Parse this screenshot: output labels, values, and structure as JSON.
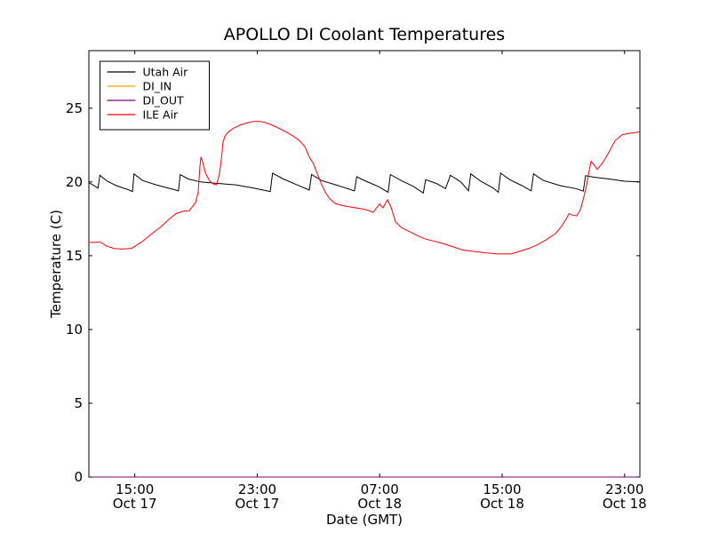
{
  "chart_data": {
    "type": "line",
    "title": "APOLLO DI Coolant Temperatures",
    "xlabel": "Date (GMT)",
    "ylabel": "Temperature (C)",
    "x_unit": "hours since Oct 17 12:00 GMT",
    "xlim": [
      0,
      36
    ],
    "ylim": [
      0,
      28.9
    ],
    "grid": false,
    "legend_position": "upper-left",
    "frame_color": "#000000",
    "background_color": "#ffffff",
    "yticks": [
      {
        "value": 0,
        "label": "0"
      },
      {
        "value": 5,
        "label": "5"
      },
      {
        "value": 10,
        "label": "10"
      },
      {
        "value": 15,
        "label": "15"
      },
      {
        "value": 20,
        "label": "20"
      },
      {
        "value": 25,
        "label": "25"
      }
    ],
    "xticks": [
      {
        "value": 3,
        "time": "15:00",
        "date": "Oct 17"
      },
      {
        "value": 11,
        "time": "23:00",
        "date": "Oct 17"
      },
      {
        "value": 19,
        "time": "07:00",
        "date": "Oct 18"
      },
      {
        "value": 27,
        "time": "15:00",
        "date": "Oct 18"
      },
      {
        "value": 35,
        "time": "23:00",
        "date": "Oct 18"
      }
    ],
    "series": [
      {
        "name": "Utah Air",
        "color": "#000000",
        "points": [
          [
            0,
            19.95
          ],
          [
            0.35,
            19.75
          ],
          [
            0.6,
            19.58
          ],
          [
            0.72,
            20.45
          ],
          [
            1.2,
            20.05
          ],
          [
            1.8,
            19.75
          ],
          [
            2.5,
            19.5
          ],
          [
            2.85,
            19.35
          ],
          [
            2.95,
            20.55
          ],
          [
            3.5,
            20.1
          ],
          [
            4.4,
            19.8
          ],
          [
            5.5,
            19.5
          ],
          [
            5.85,
            19.4
          ],
          [
            5.97,
            20.5
          ],
          [
            6.5,
            20.2
          ],
          [
            7.3,
            20.0
          ],
          [
            8.4,
            19.9
          ],
          [
            9.6,
            19.8
          ],
          [
            10.7,
            19.6
          ],
          [
            11.85,
            19.35
          ],
          [
            12.0,
            20.6
          ],
          [
            12.7,
            20.2
          ],
          [
            13.6,
            19.8
          ],
          [
            14.4,
            19.45
          ],
          [
            14.55,
            20.5
          ],
          [
            15.2,
            20.1
          ],
          [
            16.3,
            19.75
          ],
          [
            17.35,
            19.4
          ],
          [
            17.5,
            20.35
          ],
          [
            18.1,
            20.05
          ],
          [
            18.9,
            19.7
          ],
          [
            19.55,
            19.3
          ],
          [
            19.7,
            20.5
          ],
          [
            20.4,
            20.1
          ],
          [
            21.2,
            19.7
          ],
          [
            21.85,
            19.25
          ],
          [
            22.0,
            20.15
          ],
          [
            22.7,
            19.9
          ],
          [
            23.3,
            19.55
          ],
          [
            23.62,
            20.45
          ],
          [
            24.3,
            20.0
          ],
          [
            24.8,
            19.4
          ],
          [
            24.95,
            20.55
          ],
          [
            25.6,
            20.05
          ],
          [
            26.4,
            19.6
          ],
          [
            26.75,
            19.3
          ],
          [
            26.9,
            20.6
          ],
          [
            27.5,
            20.15
          ],
          [
            28.3,
            19.75
          ],
          [
            28.9,
            19.4
          ],
          [
            29.05,
            20.55
          ],
          [
            29.7,
            20.1
          ],
          [
            30.8,
            19.75
          ],
          [
            31.8,
            19.55
          ],
          [
            32.3,
            19.38
          ],
          [
            32.45,
            20.42
          ],
          [
            33.0,
            20.32
          ],
          [
            34.0,
            20.2
          ],
          [
            35.0,
            20.05
          ],
          [
            36.0,
            20.0
          ]
        ]
      },
      {
        "name": "DI_IN",
        "color": "#ffa500",
        "points": [
          [
            0,
            0
          ],
          [
            36,
            0
          ]
        ]
      },
      {
        "name": "DI_OUT",
        "color": "#800080",
        "points": [
          [
            0,
            0
          ],
          [
            36,
            0
          ]
        ]
      },
      {
        "name": "ILE Air",
        "color": "#ff0000",
        "points": [
          [
            0,
            15.9
          ],
          [
            0.46,
            15.9
          ],
          [
            0.7,
            15.95
          ],
          [
            1.16,
            15.65
          ],
          [
            1.63,
            15.5
          ],
          [
            2.15,
            15.45
          ],
          [
            2.79,
            15.5
          ],
          [
            3.48,
            15.95
          ],
          [
            4.12,
            16.5
          ],
          [
            4.7,
            16.95
          ],
          [
            5.28,
            17.5
          ],
          [
            5.69,
            17.85
          ],
          [
            6.1,
            18.0
          ],
          [
            6.56,
            18.05
          ],
          [
            6.97,
            18.6
          ],
          [
            7.14,
            19.3
          ],
          [
            7.25,
            21.0
          ],
          [
            7.32,
            21.7
          ],
          [
            7.45,
            21.3
          ],
          [
            7.62,
            20.6
          ],
          [
            7.9,
            20.05
          ],
          [
            8.15,
            19.85
          ],
          [
            8.35,
            19.8
          ],
          [
            8.54,
            20.6
          ],
          [
            8.65,
            21.5
          ],
          [
            8.77,
            22.7
          ],
          [
            8.89,
            23.1
          ],
          [
            9.12,
            23.4
          ],
          [
            9.47,
            23.65
          ],
          [
            9.87,
            23.85
          ],
          [
            10.34,
            24.0
          ],
          [
            10.74,
            24.1
          ],
          [
            11.21,
            24.1
          ],
          [
            11.61,
            24.0
          ],
          [
            12.19,
            23.75
          ],
          [
            12.78,
            23.45
          ],
          [
            13.36,
            23.1
          ],
          [
            13.76,
            22.8
          ],
          [
            14.11,
            22.4
          ],
          [
            14.4,
            21.7
          ],
          [
            14.69,
            21.2
          ],
          [
            14.98,
            20.4
          ],
          [
            15.21,
            19.8
          ],
          [
            15.45,
            19.3
          ],
          [
            15.74,
            18.85
          ],
          [
            16.09,
            18.55
          ],
          [
            16.55,
            18.4
          ],
          [
            17.13,
            18.3
          ],
          [
            17.71,
            18.2
          ],
          [
            18.18,
            18.1
          ],
          [
            18.58,
            17.95
          ],
          [
            18.99,
            18.5
          ],
          [
            19.22,
            18.25
          ],
          [
            19.51,
            18.8
          ],
          [
            19.74,
            18.3
          ],
          [
            20.03,
            17.3
          ],
          [
            20.44,
            16.9
          ],
          [
            21.02,
            16.6
          ],
          [
            21.49,
            16.35
          ],
          [
            21.95,
            16.15
          ],
          [
            22.53,
            16.0
          ],
          [
            23.23,
            15.8
          ],
          [
            23.81,
            15.6
          ],
          [
            24.39,
            15.4
          ],
          [
            25.09,
            15.3
          ],
          [
            25.84,
            15.2
          ],
          [
            26.71,
            15.12
          ],
          [
            27.58,
            15.12
          ],
          [
            28.16,
            15.3
          ],
          [
            28.75,
            15.5
          ],
          [
            29.33,
            15.75
          ],
          [
            29.91,
            16.1
          ],
          [
            30.49,
            16.5
          ],
          [
            30.89,
            17.0
          ],
          [
            31.19,
            17.5
          ],
          [
            31.36,
            17.85
          ],
          [
            31.59,
            17.75
          ],
          [
            31.88,
            17.7
          ],
          [
            32.11,
            18.1
          ],
          [
            32.34,
            19.0
          ],
          [
            32.52,
            19.8
          ],
          [
            32.69,
            20.8
          ],
          [
            32.81,
            21.4
          ],
          [
            32.98,
            21.2
          ],
          [
            33.22,
            20.85
          ],
          [
            33.57,
            21.3
          ],
          [
            33.97,
            22.0
          ],
          [
            34.38,
            22.8
          ],
          [
            34.84,
            23.2
          ],
          [
            35.31,
            23.3
          ],
          [
            35.71,
            23.35
          ],
          [
            36.0,
            23.4
          ]
        ]
      }
    ]
  }
}
